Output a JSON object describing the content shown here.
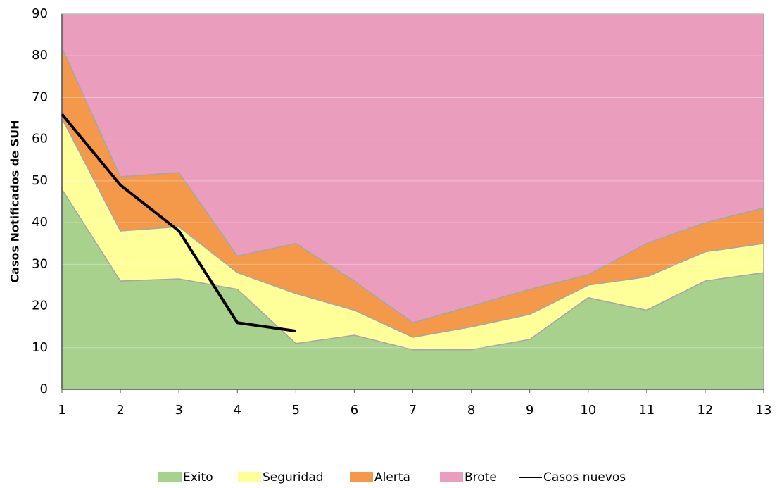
{
  "chart_data": {
    "type": "stacked-area",
    "y_label": "Casos Notificados de SUH",
    "x": [
      1,
      2,
      3,
      4,
      5,
      6,
      7,
      8,
      9,
      10,
      11,
      12,
      13
    ],
    "xlim": [
      1,
      13
    ],
    "xticks": [
      1,
      2,
      3,
      4,
      5,
      6,
      7,
      8,
      9,
      10,
      11,
      12,
      13
    ],
    "ylim": [
      0,
      90
    ],
    "yticks": [
      0,
      10,
      20,
      30,
      40,
      50,
      60,
      70,
      80,
      90
    ],
    "grid": true,
    "legend": "bottom",
    "series": [
      {
        "name": "Exito",
        "color": "#a9d18e",
        "values": [
          48,
          26,
          26.5,
          24,
          11,
          13,
          9.5,
          9.5,
          12,
          22,
          19,
          26,
          28
        ]
      },
      {
        "name": "Seguridad",
        "color": "#ffff99",
        "values": [
          17,
          12,
          12.5,
          4,
          12,
          6,
          3,
          5.5,
          6,
          3,
          8,
          7,
          7
        ]
      },
      {
        "name": "Alerta",
        "color": "#f4994a",
        "values": [
          17,
          13,
          13,
          4,
          12,
          7,
          3.5,
          5,
          6,
          2.5,
          8,
          7,
          8.5
        ]
      },
      {
        "name": "Brote",
        "color": "#eb9dbd",
        "values": [
          8,
          39,
          38,
          58,
          55,
          64,
          74,
          70,
          66,
          62.5,
          55,
          50,
          46.5
        ]
      }
    ],
    "line": {
      "name": "Casos nuevos",
      "color": "#000000",
      "values": [
        66,
        49,
        38,
        16,
        14,
        null,
        null,
        null,
        null,
        null,
        null,
        null,
        null
      ]
    }
  }
}
